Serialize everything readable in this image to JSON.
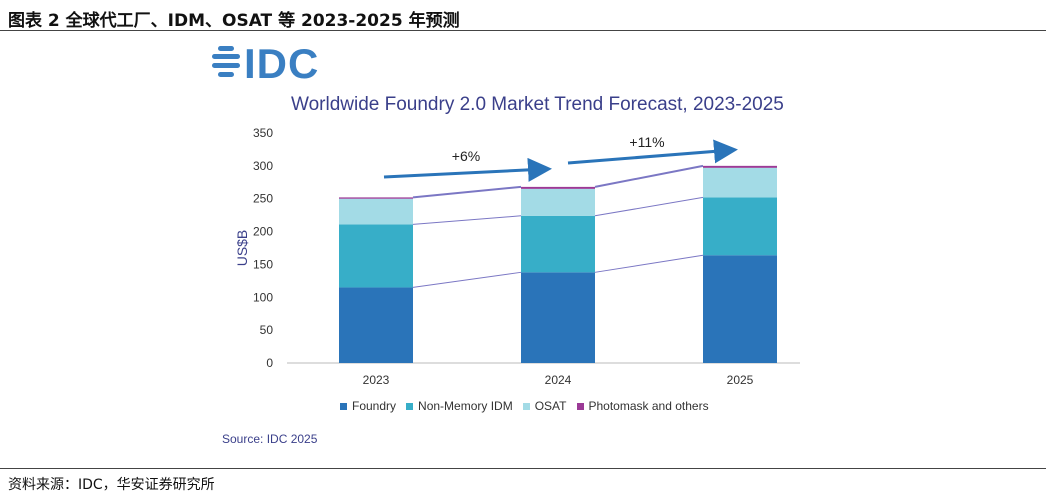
{
  "figure_title": "图表 2 全球代工厂、IDM、OSAT 等 2023-2025 年预测",
  "logo": {
    "text": "IDC",
    "color": "#3a7fc2"
  },
  "bottom_source": "资料来源：IDC，华安证券研究所",
  "chart_data": {
    "type": "bar",
    "stacked": true,
    "title": "Worldwide Foundry 2.0 Market Trend Forecast, 2023-2025",
    "xlabel": "",
    "ylabel": "US$B",
    "ylim": [
      0,
      350
    ],
    "yticks": [
      0,
      50,
      100,
      150,
      200,
      250,
      300,
      350
    ],
    "grid": false,
    "legend_position": "bottom",
    "categories": [
      "2023",
      "2024",
      "2025"
    ],
    "series": [
      {
        "name": "Foundry",
        "values": [
          115,
          138,
          164
        ],
        "color": "#2a74b9"
      },
      {
        "name": "Non-Memory IDM",
        "values": [
          96,
          86,
          88
        ],
        "color": "#37aec8"
      },
      {
        "name": "OSAT",
        "values": [
          39,
          41,
          45
        ],
        "color": "#a3dbe6"
      },
      {
        "name": "Photomask and others",
        "values": [
          2,
          3,
          3
        ],
        "color": "#9b3a96"
      }
    ],
    "annotations": [
      {
        "text": "+6%",
        "from": "2023",
        "to": "2024"
      },
      {
        "text": "+11%",
        "from": "2024",
        "to": "2025"
      }
    ],
    "source": "Source: IDC 2025"
  }
}
